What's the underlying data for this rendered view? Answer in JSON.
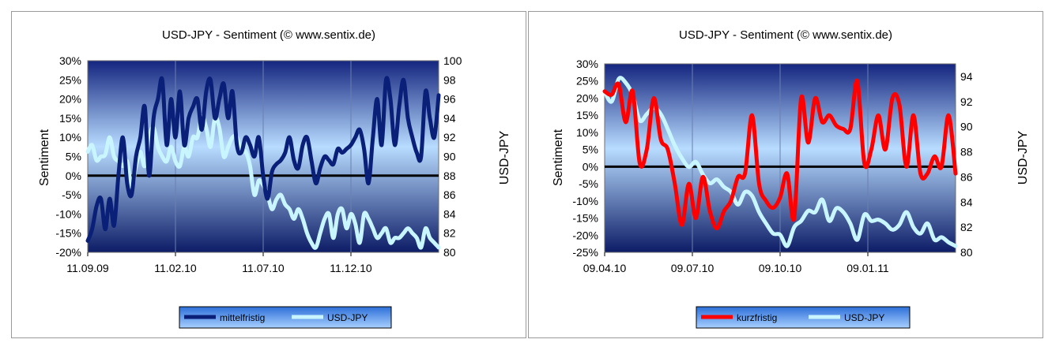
{
  "charts": [
    {
      "title": "USD-JPY - Sentiment (© www.sentix.de)",
      "ylabel": "Sentiment",
      "y2label": "USD-JPY",
      "legend": [
        "mittelfristig",
        "USD-JPY"
      ]
    },
    {
      "title": "USD-JPY - Sentiment (© www.sentix.de)",
      "ylabel": "Sentiment",
      "y2label": "USD-JPY",
      "legend": [
        "kurzfristig",
        "USD-JPY"
      ]
    }
  ],
  "chart_data": [
    {
      "type": "line",
      "title": "USD-JPY - Sentiment (© www.sentix.de)",
      "ylabel": "Sentiment",
      "y2label": "USD-JPY",
      "x_tick_labels": [
        "11.09.09",
        "11.02.10",
        "11.07.10",
        "11.12.10"
      ],
      "y_ticks": [
        "-20%",
        "-15%",
        "-10%",
        "-5%",
        "0%",
        "5%",
        "10%",
        "15%",
        "20%",
        "25%",
        "30%"
      ],
      "y2_ticks": [
        "80",
        "82",
        "84",
        "86",
        "88",
        "90",
        "92",
        "94",
        "96",
        "98",
        "100"
      ],
      "ylim": [
        -20,
        30
      ],
      "y2lim": [
        80,
        100
      ],
      "legend_position": "bottom",
      "x_range_weeks": [
        0,
        80
      ],
      "series": [
        {
          "name": "mittelfristig",
          "axis": "left",
          "color": "#0a1f78",
          "x": [
            0,
            1,
            2,
            3,
            4,
            5,
            6,
            7,
            8,
            9,
            10,
            11,
            12,
            13,
            14,
            15,
            16,
            17,
            18,
            19,
            20,
            21,
            22,
            23,
            24,
            25,
            26,
            27,
            28,
            29,
            30,
            31,
            32,
            33,
            34,
            35,
            36,
            37,
            38,
            39,
            40,
            41,
            42,
            43,
            44,
            45,
            46,
            47,
            48,
            49,
            50,
            51,
            52,
            53,
            54,
            55,
            56,
            57,
            58,
            59,
            60,
            61,
            62,
            63,
            64,
            65,
            66,
            67,
            68,
            69,
            70,
            71,
            72,
            73,
            74,
            75,
            76,
            77,
            78,
            79,
            80
          ],
          "y": [
            -17,
            -14,
            -8,
            -6,
            -14,
            -6,
            -13,
            0,
            10,
            -2,
            -5,
            5,
            10,
            18,
            0,
            15,
            20,
            25,
            8,
            20,
            10,
            22,
            8,
            15,
            18,
            20,
            12,
            22,
            25,
            15,
            20,
            24,
            15,
            22,
            8,
            6,
            10,
            8,
            5,
            10,
            0,
            -6,
            1,
            3,
            4,
            6,
            10,
            4,
            2,
            8,
            10,
            4,
            -2,
            2,
            5,
            4,
            3,
            7,
            6,
            7,
            8,
            10,
            12,
            7,
            -2,
            10,
            20,
            8,
            25,
            20,
            8,
            18,
            25,
            15,
            10,
            6,
            5,
            22,
            15,
            10,
            21
          ]
        },
        {
          "name": "USD-JPY",
          "axis": "right",
          "color": "#c8f5ff",
          "x": [
            0,
            1,
            2,
            3,
            4,
            5,
            6,
            7,
            8,
            9,
            10,
            11,
            12,
            13,
            14,
            15,
            16,
            17,
            18,
            19,
            20,
            21,
            22,
            23,
            24,
            25,
            26,
            27,
            28,
            29,
            30,
            31,
            32,
            33,
            34,
            35,
            36,
            37,
            38,
            39,
            40,
            41,
            42,
            43,
            44,
            45,
            46,
            47,
            48,
            49,
            50,
            51,
            52,
            53,
            54,
            55,
            56,
            57,
            58,
            59,
            60,
            61,
            62,
            63,
            64,
            65,
            66,
            67,
            68,
            69,
            70,
            71,
            72,
            73,
            74,
            75,
            76,
            77,
            78,
            79,
            80
          ],
          "y": [
            90.5,
            91.2,
            89.6,
            90.0,
            90.2,
            92.0,
            90.0,
            89.5,
            89.0,
            89.5,
            86.8,
            89.0,
            90.5,
            89.0,
            92.0,
            93.0,
            91.0,
            90.0,
            89.5,
            91.0,
            89.5,
            89.0,
            91.0,
            90.0,
            92.0,
            92.0,
            94.2,
            93.0,
            91.0,
            94.0,
            93.0,
            90.0,
            91.0,
            92.0,
            92.0,
            90.5,
            90.5,
            89.0,
            86.0,
            87.5,
            87.0,
            86.0,
            84.5,
            85.5,
            86.0,
            85.0,
            84.5,
            83.5,
            84.5,
            83.5,
            82.0,
            81.0,
            80.5,
            82.0,
            83.5,
            84.0,
            81.5,
            84.0,
            84.5,
            82.5,
            84.0,
            83.0,
            81.0,
            84.0,
            83.5,
            82.5,
            81.5,
            82.0,
            82.5,
            81.0,
            81.5,
            81.5,
            82.0,
            82.5,
            82.0,
            81.5,
            80.5,
            82.5,
            81.5,
            81.0,
            80.5
          ]
        }
      ]
    },
    {
      "type": "line",
      "title": "USD-JPY - Sentiment (© www.sentix.de)",
      "ylabel": "Sentiment",
      "y2label": "USD-JPY",
      "x_tick_labels": [
        "09.04.10",
        "09.07.10",
        "09.10.10",
        "09.01.11"
      ],
      "y_ticks": [
        "-25%",
        "-20%",
        "-15%",
        "-10%",
        "-5%",
        "0%",
        "5%",
        "10%",
        "15%",
        "20%",
        "25%",
        "30%"
      ],
      "y2_ticks": [
        "80",
        "82",
        "84",
        "86",
        "88",
        "90",
        "92",
        "94"
      ],
      "ylim": [
        -25,
        30
      ],
      "y2lim": [
        80,
        95
      ],
      "legend_position": "bottom",
      "x_range_weeks": [
        0,
        50
      ],
      "series": [
        {
          "name": "kurzfristig",
          "axis": "left",
          "color": "#ff0000",
          "x": [
            0,
            1,
            2,
            3,
            4,
            5,
            6,
            7,
            8,
            9,
            10,
            11,
            12,
            13,
            14,
            15,
            16,
            17,
            18,
            19,
            20,
            21,
            22,
            23,
            24,
            25,
            26,
            27,
            28,
            29,
            30,
            31,
            32,
            33,
            34,
            35,
            36,
            37,
            38,
            39,
            40,
            41,
            42,
            43,
            44,
            45,
            46,
            47,
            48,
            49,
            50
          ],
          "y": [
            22,
            21,
            24,
            13,
            22,
            1,
            5,
            20,
            8,
            5,
            -5,
            -17,
            -5,
            -15,
            -3,
            -13,
            -18,
            -13,
            -10,
            -3,
            -2,
            15,
            -5,
            -10,
            -12,
            -9,
            -2,
            -15,
            20,
            7,
            20,
            13,
            15,
            12,
            11,
            11,
            25,
            1,
            5,
            15,
            5,
            20,
            18,
            0,
            15,
            -2,
            -2,
            3,
            0,
            15,
            -2
          ]
        },
        {
          "name": "USD-JPY",
          "axis": "right",
          "color": "#c8f5ff",
          "x": [
            0,
            1,
            2,
            3,
            4,
            5,
            6,
            7,
            8,
            9,
            10,
            11,
            12,
            13,
            14,
            15,
            16,
            17,
            18,
            19,
            20,
            21,
            22,
            23,
            24,
            25,
            26,
            27,
            28,
            29,
            30,
            31,
            32,
            33,
            34,
            35,
            36,
            37,
            38,
            39,
            40,
            41,
            42,
            43,
            44,
            45,
            46,
            47,
            48,
            49,
            50
          ],
          "y": [
            92.8,
            92.0,
            93.8,
            93.5,
            92.5,
            90.5,
            91.0,
            91.5,
            91.0,
            89.8,
            88.5,
            87.5,
            86.8,
            87.2,
            86.2,
            85.5,
            85.8,
            85.2,
            84.8,
            83.8,
            84.8,
            84.5,
            83.2,
            82.3,
            81.5,
            81.4,
            80.5,
            82.0,
            82.5,
            83.3,
            83.2,
            84.2,
            82.5,
            83.5,
            83.2,
            82.3,
            81.0,
            83.0,
            82.5,
            82.6,
            82.3,
            81.8,
            82.2,
            83.2,
            82.0,
            81.5,
            82.3,
            81.0,
            81.2,
            80.8,
            80.5
          ]
        }
      ]
    }
  ]
}
